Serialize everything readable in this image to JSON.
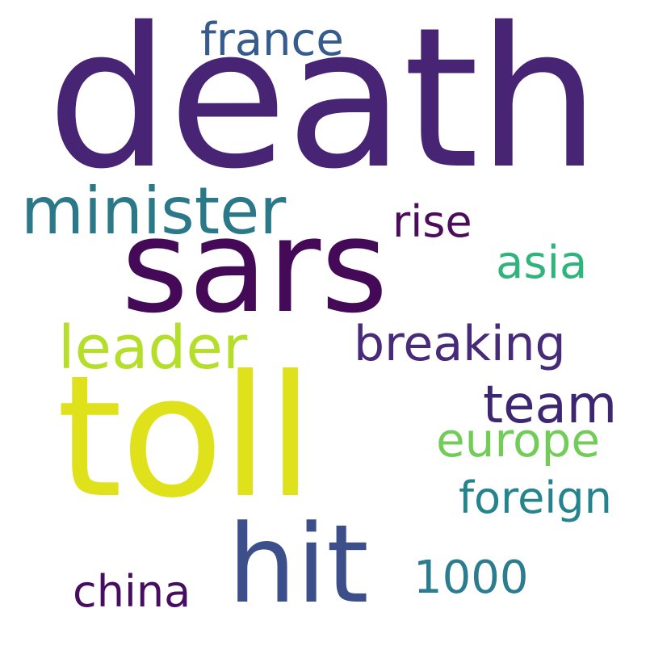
{
  "words": {
    "death": {
      "text": "death",
      "color": "#482475"
    },
    "sars": {
      "text": "sars",
      "color": "#440a58"
    },
    "toll": {
      "text": "toll",
      "color": "#dfe21a"
    },
    "hit": {
      "text": "hit",
      "color": "#3c4f8a"
    },
    "minister": {
      "text": "minister",
      "color": "#2a7888"
    },
    "france": {
      "text": "france",
      "color": "#365c8d"
    },
    "rise": {
      "text": "rise",
      "color": "#4b0c5c"
    },
    "asia": {
      "text": "asia",
      "color": "#2fb47c"
    },
    "leader": {
      "text": "leader",
      "color": "#b5de2b"
    },
    "breaking": {
      "text": "breaking",
      "color": "#472a78"
    },
    "team": {
      "text": "team",
      "color": "#3d2771"
    },
    "europe": {
      "text": "europe",
      "color": "#72cd58"
    },
    "foreign": {
      "text": "foreign",
      "color": "#25838e"
    },
    "1000": {
      "text": "1000",
      "color": "#2b7c8e"
    },
    "china": {
      "text": "china",
      "color": "#470d60"
    }
  }
}
